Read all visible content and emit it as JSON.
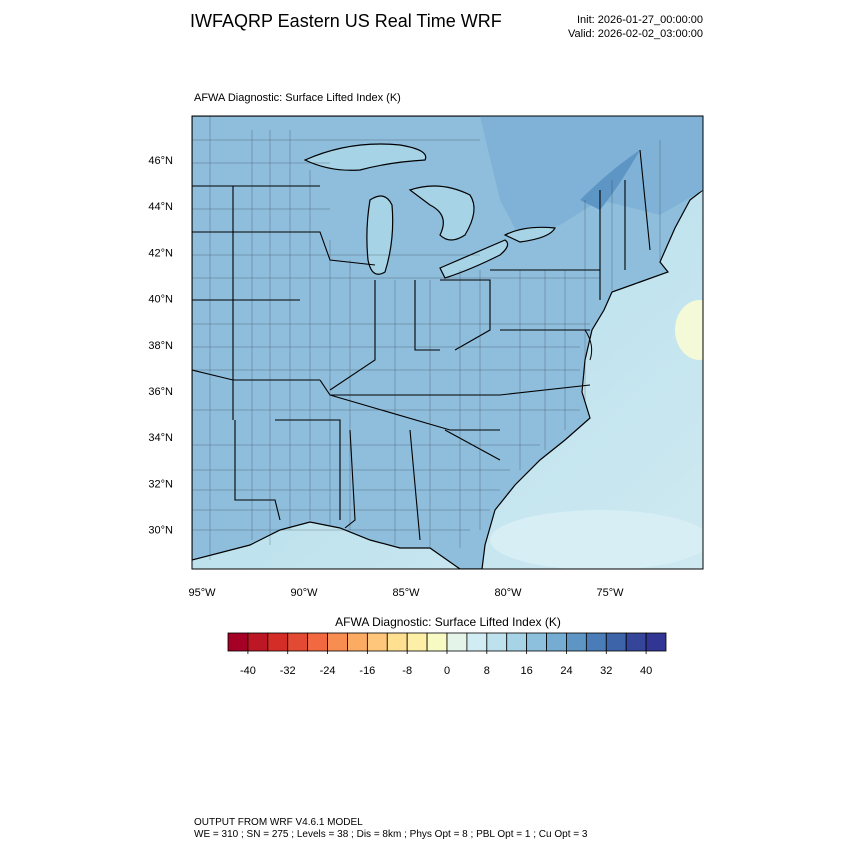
{
  "header": {
    "title": "IWFAQRP Eastern US Real Time WRF",
    "init": "Init: 2026-01-27_00:00:00",
    "valid": "Valid: 2026-02-02_03:00:00"
  },
  "map": {
    "title": "AFWA Diagnostic: Surface Lifted Index   (K)",
    "lat_labels": [
      "46°N",
      "44°N",
      "42°N",
      "40°N",
      "38°N",
      "36°N",
      "34°N",
      "32°N",
      "30°N"
    ],
    "lon_labels": [
      "95°W",
      "90°W",
      "85°W",
      "80°W",
      "75°W"
    ]
  },
  "colorbar": {
    "title": "AFWA Diagnostic: Surface Lifted Index  (K)",
    "lim": [
      -44,
      44
    ],
    "ticks": [
      -40,
      -32,
      -24,
      -16,
      -8,
      0,
      8,
      16,
      24,
      32,
      40
    ],
    "colors": [
      "#a50026",
      "#bd1726",
      "#d42d27",
      "#e34a33",
      "#f26841",
      "#f88d52",
      "#fcab63",
      "#fdc67a",
      "#fee090",
      "#fdf0a6",
      "#f7fbc3",
      "#e4f4e8",
      "#d1ecf3",
      "#bde2ee",
      "#a6d3e6",
      "#8dc0dc",
      "#74add1",
      "#5d95c4",
      "#4a7db7",
      "#3d63a8",
      "#35469a",
      "#313695"
    ]
  },
  "footer": {
    "line1": "OUTPUT FROM WRF V4.6.1 MODEL",
    "line2": "WE = 310 ; SN = 275 ; Levels = 38 ; Dis = 8km ; Phys Opt = 8 ; PBL Opt = 1 ; Cu Opt = 3"
  }
}
